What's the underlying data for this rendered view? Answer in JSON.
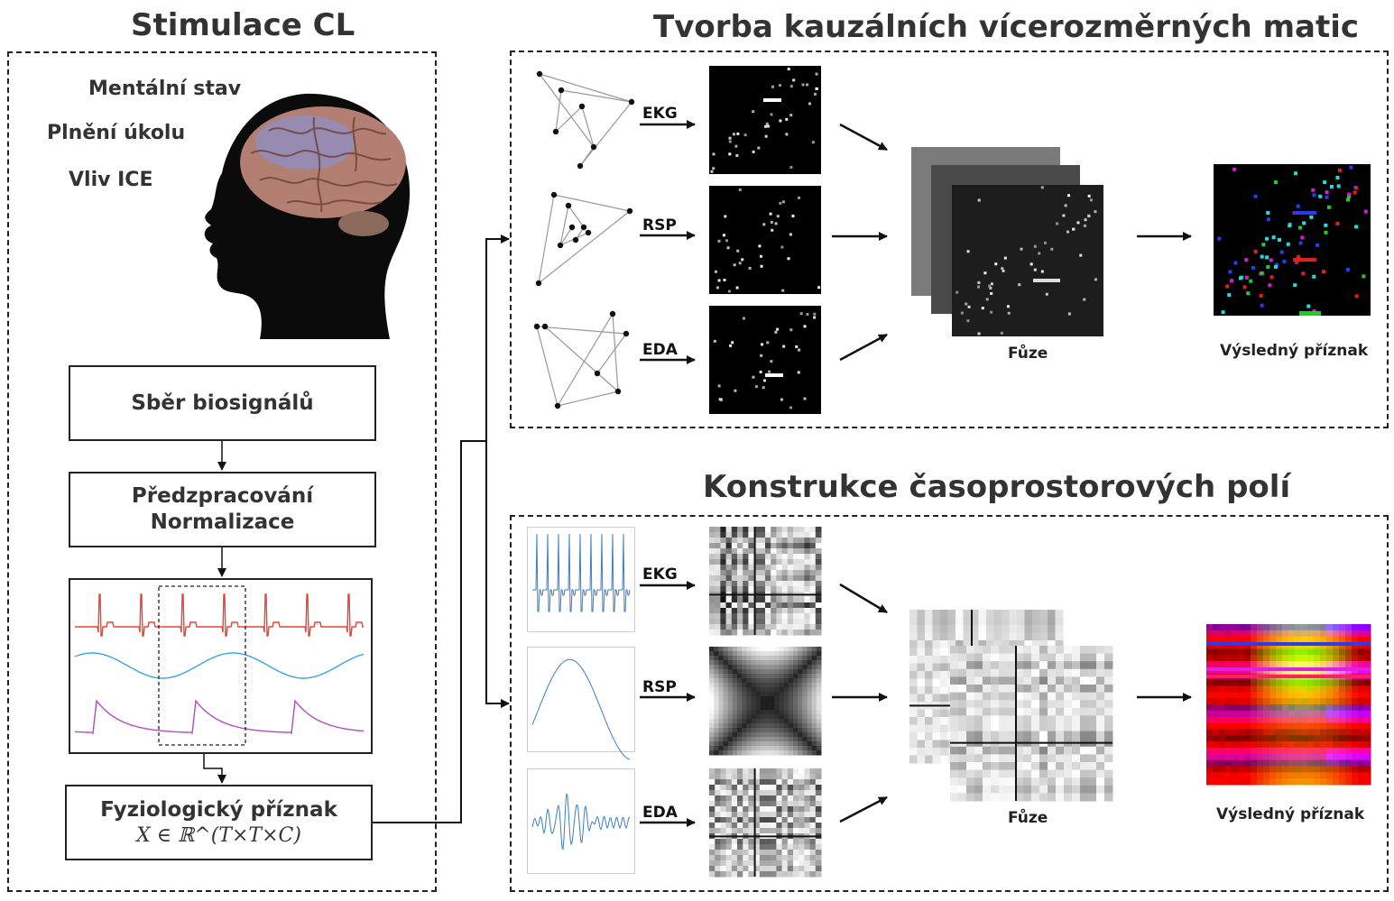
{
  "left_panel": {
    "title": "Stimulace CL",
    "states": [
      "Mentální stav",
      "Plnění úkolu",
      "Vliv ICE"
    ],
    "steps": {
      "collection": "Sběr biosignálů",
      "preprocessing_line1": "Předzpracování",
      "preprocessing_line2": "Normalizace",
      "feature_line1": "Fyziologický příznak",
      "feature_math": "X ∈ ℝ^(T×T×C)"
    },
    "signal_colors": {
      "ecg": "#e8443a",
      "resp": "#3aa6e0",
      "eda": "#b44cc4"
    }
  },
  "top_panel": {
    "title": "Tvorba kauzálních vícerozměrných matic",
    "signals": [
      "EKG",
      "RSP",
      "EDA"
    ],
    "fusion_label": "Fůze",
    "result_label": "Výsledný příznak"
  },
  "bottom_panel": {
    "title": "Konstrukce časoprostorových polí",
    "signals": [
      "EKG",
      "RSP",
      "EDA"
    ],
    "fusion_label": "Fůze",
    "result_label": "Výsledný příznak"
  },
  "icons": [
    "brain-head-icon",
    "graph-network-icon",
    "matrix-icon",
    "arrow-icon"
  ]
}
